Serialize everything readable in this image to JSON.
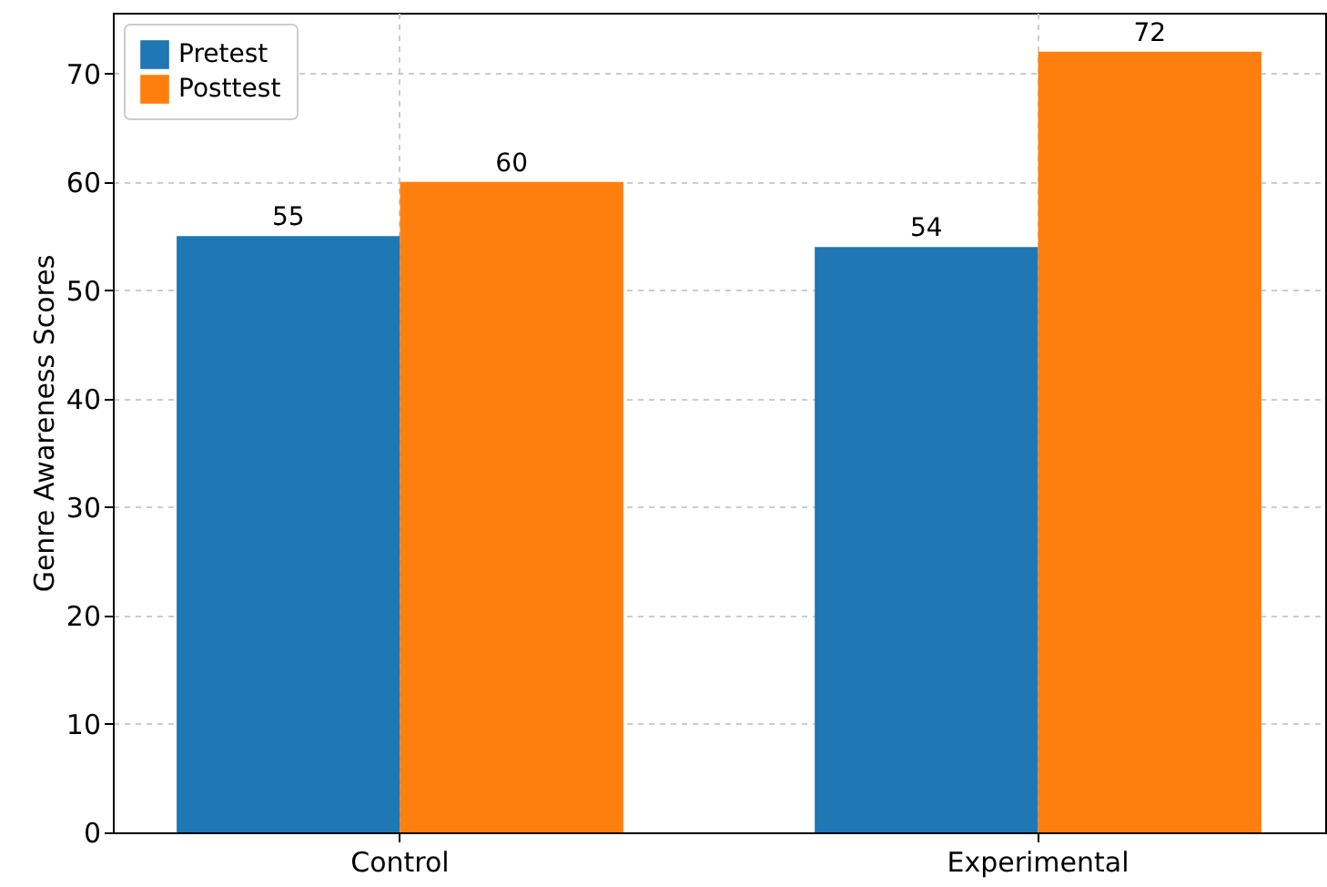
{
  "chart_data": {
    "type": "bar",
    "ylabel": "Genre Awareness Scores",
    "categories": [
      "Control",
      "Experimental"
    ],
    "series": [
      {
        "name": "Pretest",
        "color": "#1f77b4",
        "values": [
          55,
          54
        ]
      },
      {
        "name": "Posttest",
        "color": "#ff7f0e",
        "values": [
          60,
          72
        ]
      }
    ],
    "ylim": [
      0,
      75.6
    ],
    "yticks": [
      0,
      10,
      20,
      30,
      40,
      50,
      60,
      70
    ],
    "grid": true,
    "legend": "top left",
    "data_labels": true
  }
}
